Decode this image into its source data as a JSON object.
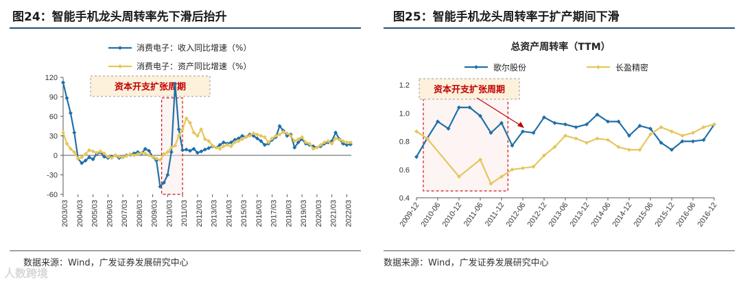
{
  "left": {
    "title": "图24：智能手机龙头周转率先下滑后抬升",
    "source": "数据来源：Wind，广发证券发展研究中心",
    "annotation": "资本开支扩张周期",
    "chart_data": {
      "type": "line",
      "title": "",
      "ylim": [
        -60,
        120
      ],
      "yticks": [
        -60,
        -30,
        0,
        30,
        60,
        90,
        120
      ],
      "xlim": [
        2003.0,
        2022.3
      ],
      "categories": [
        "2003/03",
        "2004/03",
        "2005/03",
        "2006/03",
        "2007/03",
        "2008/03",
        "2009/03",
        "2010/03",
        "2011/03",
        "2012/03",
        "2013/03",
        "2014/03",
        "2015/03",
        "2016/03",
        "2017/03",
        "2018/03",
        "2019/03",
        "2020/03",
        "2021/03",
        "2022/03"
      ],
      "annotation_range": [
        2009.6,
        2011.0
      ],
      "series": [
        {
          "name": "消费电子：收入同比增速（%）",
          "color": "#1f6fa8",
          "x": [
            2003.0,
            2003.25,
            2003.5,
            2003.75,
            2004.0,
            2004.25,
            2004.5,
            2004.75,
            2005.0,
            2005.25,
            2005.5,
            2005.75,
            2006.0,
            2006.25,
            2006.5,
            2006.75,
            2007.0,
            2007.25,
            2007.5,
            2007.75,
            2008.0,
            2008.25,
            2008.5,
            2008.75,
            2009.0,
            2009.25,
            2009.5,
            2009.75,
            2010.0,
            2010.25,
            2010.5,
            2010.75,
            2011.0,
            2011.25,
            2011.5,
            2011.75,
            2012.0,
            2012.25,
            2012.5,
            2012.75,
            2013.0,
            2013.25,
            2013.5,
            2013.75,
            2014.0,
            2014.25,
            2014.5,
            2014.75,
            2015.0,
            2015.25,
            2015.5,
            2015.75,
            2016.0,
            2016.25,
            2016.5,
            2016.75,
            2017.0,
            2017.25,
            2017.5,
            2017.75,
            2018.0,
            2018.25,
            2018.5,
            2018.75,
            2019.0,
            2019.25,
            2019.5,
            2019.75,
            2020.0,
            2020.25,
            2020.5,
            2020.75,
            2021.0,
            2021.25,
            2021.5,
            2021.75,
            2022.0,
            2022.25
          ],
          "values": [
            112,
            88,
            65,
            35,
            -5,
            -12,
            -8,
            -3,
            -6,
            2,
            5,
            -2,
            -4,
            -2,
            0,
            -4,
            -3,
            0,
            1,
            3,
            5,
            3,
            10,
            7,
            -2,
            -8,
            -48,
            -42,
            -30,
            5,
            110,
            40,
            8,
            9,
            7,
            10,
            4,
            6,
            9,
            11,
            14,
            12,
            16,
            20,
            18,
            20,
            24,
            26,
            30,
            28,
            32,
            30,
            26,
            22,
            16,
            18,
            24,
            28,
            45,
            38,
            30,
            32,
            12,
            20,
            25,
            18,
            16,
            14,
            12,
            14,
            18,
            20,
            22,
            35,
            25,
            18,
            16,
            17
          ]
        },
        {
          "name": "消费电子：资产同比增速（%）",
          "color": "#e6c65a",
          "x": [
            2003.0,
            2003.25,
            2003.5,
            2003.75,
            2004.0,
            2004.25,
            2004.5,
            2004.75,
            2005.0,
            2005.25,
            2005.5,
            2005.75,
            2006.0,
            2006.25,
            2006.5,
            2006.75,
            2007.0,
            2007.25,
            2007.5,
            2007.75,
            2008.0,
            2008.25,
            2008.5,
            2008.75,
            2009.0,
            2009.25,
            2009.5,
            2009.75,
            2010.0,
            2010.25,
            2010.5,
            2010.75,
            2011.0,
            2011.25,
            2011.5,
            2011.75,
            2012.0,
            2012.25,
            2012.5,
            2012.75,
            2013.0,
            2013.25,
            2013.5,
            2013.75,
            2014.0,
            2014.25,
            2014.5,
            2014.75,
            2015.0,
            2015.25,
            2015.5,
            2015.75,
            2016.0,
            2016.25,
            2016.5,
            2016.75,
            2017.0,
            2017.25,
            2017.5,
            2017.75,
            2018.0,
            2018.25,
            2018.5,
            2018.75,
            2019.0,
            2019.25,
            2019.5,
            2019.75,
            2020.0,
            2020.25,
            2020.5,
            2020.75,
            2021.0,
            2021.25,
            2021.5,
            2021.75,
            2022.0,
            2022.25
          ],
          "values": [
            35,
            18,
            10,
            5,
            -5,
            -3,
            2,
            8,
            6,
            4,
            6,
            3,
            -2,
            -4,
            0,
            -2,
            -3,
            -1,
            2,
            0,
            2,
            4,
            3,
            0,
            -2,
            -5,
            -7,
            2,
            5,
            12,
            15,
            30,
            40,
            57,
            50,
            35,
            30,
            40,
            25,
            22,
            15,
            12,
            10,
            14,
            16,
            14,
            20,
            22,
            25,
            28,
            30,
            34,
            32,
            30,
            28,
            20,
            26,
            30,
            32,
            36,
            34,
            30,
            22,
            25,
            28,
            20,
            18,
            10,
            12,
            16,
            20,
            22,
            18,
            26,
            24,
            22,
            20,
            20
          ]
        }
      ]
    }
  },
  "right": {
    "title": "图25：智能手机龙头周转率于扩产期间下滑",
    "source": "数据来源：Wind，广发证券发展研究中心",
    "annotation": "资本开支扩张周期",
    "chart_data": {
      "type": "line",
      "title": "总资产周转率（TTM）",
      "ylim": [
        0.4,
        1.2
      ],
      "yticks": [
        0.4,
        0.6,
        0.8,
        1.0,
        1.2
      ],
      "categories": [
        "2009-12",
        "2010-06",
        "2010-12",
        "2011-06",
        "2011-12",
        "2012-06",
        "2012-12",
        "2013-06",
        "2013-12",
        "2014-06",
        "2014-12",
        "2015-06",
        "2015-12",
        "2016-06",
        "2016-12"
      ],
      "annotation_range": [
        0,
        4.3
      ],
      "series": [
        {
          "name": "歌尔股份",
          "color": "#1f6fa8",
          "x": [
            0,
            0.5,
            1,
            1.5,
            2,
            2.5,
            3,
            3.5,
            4,
            4.5,
            5,
            5.5,
            6,
            6.5,
            7,
            7.5,
            8,
            8.5,
            9,
            9.5,
            10,
            10.5,
            11,
            11.5,
            12,
            12.5,
            13,
            13.5,
            14
          ],
          "values": [
            0.69,
            0.82,
            0.94,
            0.89,
            1.04,
            1.04,
            0.98,
            0.86,
            0.93,
            0.77,
            0.87,
            0.86,
            0.97,
            0.93,
            0.92,
            0.9,
            0.92,
            0.99,
            0.94,
            0.94,
            0.84,
            0.91,
            0.89,
            0.79,
            0.74,
            0.8,
            0.8,
            0.81,
            0.92
          ]
        },
        {
          "name": "长盈精密",
          "color": "#e6c65a",
          "x": [
            0,
            0.5,
            2,
            3,
            3.5,
            4,
            4.5,
            5,
            5.5,
            6,
            6.5,
            7,
            7.5,
            8,
            8.5,
            9,
            9.5,
            10,
            10.5,
            11,
            11.5,
            12,
            12.5,
            13,
            13.5,
            14
          ],
          "values": [
            0.87,
            0.82,
            0.55,
            0.67,
            0.5,
            0.55,
            0.6,
            0.61,
            0.62,
            0.7,
            0.76,
            0.84,
            0.82,
            0.79,
            0.82,
            0.81,
            0.76,
            0.74,
            0.74,
            0.85,
            0.9,
            0.87,
            0.84,
            0.86,
            0.9,
            0.92
          ]
        }
      ]
    }
  },
  "watermark": "人数跨境"
}
